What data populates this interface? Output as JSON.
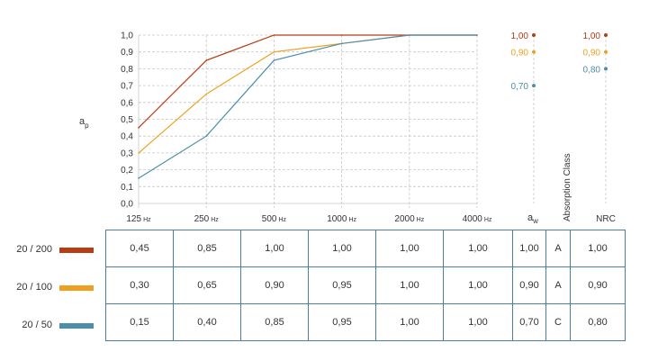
{
  "chart_data": {
    "type": "line",
    "categories": [
      "125",
      "250",
      "500",
      "1000",
      "2000",
      "4000"
    ],
    "category_labels": [
      {
        "num": "125",
        "unit": "Hz"
      },
      {
        "num": "250",
        "unit": "Hz"
      },
      {
        "num": "500",
        "unit": "Hz"
      },
      {
        "num": "1000",
        "unit": "Hz"
      },
      {
        "num": "2000",
        "unit": "Hz"
      },
      {
        "num": "4000",
        "unit": "Hz"
      }
    ],
    "ylabel_main": "a",
    "ylabel_sub": "p",
    "ylim": [
      0,
      1
    ],
    "yticks": [
      "0,0",
      "0,1",
      "0,2",
      "0,3",
      "0,4",
      "0,5",
      "0,6",
      "0,7",
      "0,8",
      "0,9",
      "1,0"
    ],
    "grid": true,
    "series": [
      {
        "name": "20 / 200",
        "color": "#b73c14",
        "values": [
          0.45,
          0.85,
          1.0,
          1.0,
          1.0,
          1.0
        ]
      },
      {
        "name": "20 / 100",
        "color": "#f0a020",
        "values": [
          0.3,
          0.65,
          0.9,
          0.95,
          1.0,
          1.0
        ]
      },
      {
        "name": "20 / 50",
        "color": "#4a8eaa",
        "values": [
          0.15,
          0.4,
          0.85,
          0.95,
          1.0,
          1.0
        ]
      }
    ],
    "aw_values": [
      1.0,
      0.9,
      0.7
    ],
    "aw_labels": [
      "1,00",
      "0,90",
      "0,70"
    ],
    "nrc_values": [
      1.0,
      0.9,
      0.8
    ],
    "nrc_labels": [
      "1,00",
      "0,90",
      "0,80"
    ],
    "column_labels": {
      "aw_main": "a",
      "aw_sub": "w",
      "absorption_class": "Absorption Class",
      "nrc": "NRC"
    }
  },
  "table": {
    "rows": [
      {
        "label": "20 / 200",
        "color": "#b73c14",
        "cells": [
          "0,45",
          "0,85",
          "1,00",
          "1,00",
          "1,00",
          "1,00",
          "1,00",
          "A",
          "1,00"
        ]
      },
      {
        "label": "20 / 100",
        "color": "#f0a020",
        "cells": [
          "0,30",
          "0,65",
          "0,90",
          "0,95",
          "1,00",
          "1,00",
          "0,90",
          "A",
          "0,90"
        ]
      },
      {
        "label": "20 / 50",
        "color": "#4a8eaa",
        "cells": [
          "0,15",
          "0,40",
          "0,85",
          "0,95",
          "1,00",
          "1,00",
          "0,70",
          "C",
          "0,80"
        ]
      }
    ]
  }
}
